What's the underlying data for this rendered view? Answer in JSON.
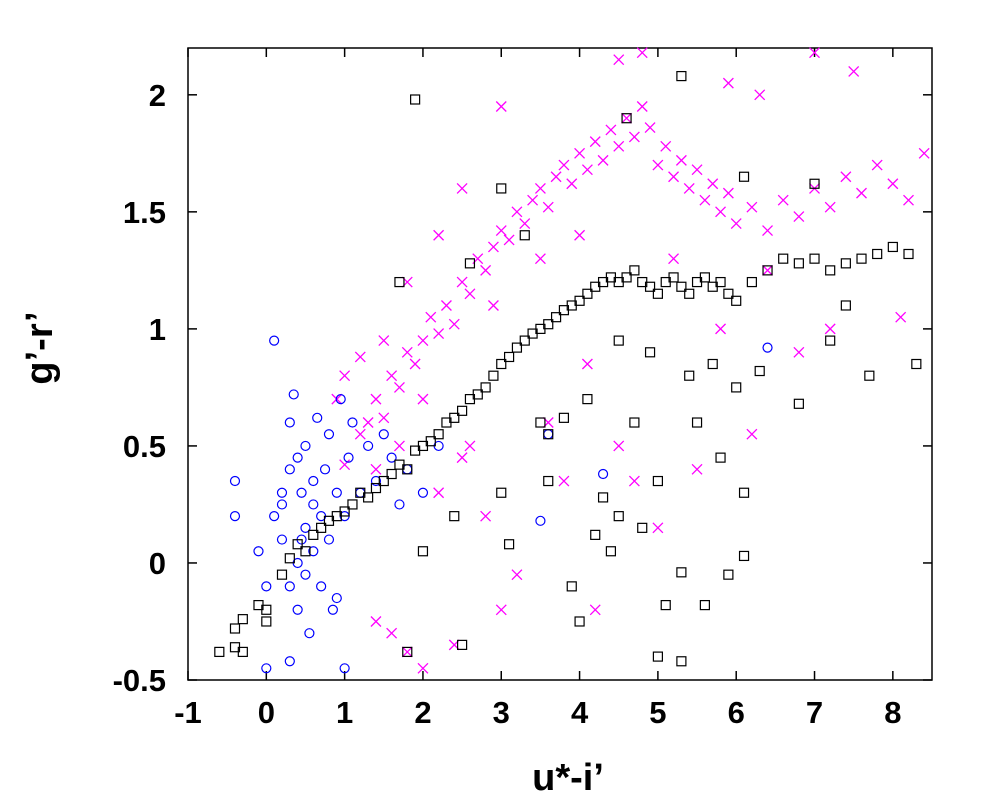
{
  "chart_data": {
    "type": "scatter",
    "xlabel": "u*-i’",
    "ylabel": "g’-r’",
    "xlim": [
      -1,
      8.5
    ],
    "ylim": [
      -0.5,
      2.2
    ],
    "xticks": [
      "-1",
      "0",
      "1",
      "2",
      "3",
      "4",
      "5",
      "6",
      "7",
      "8"
    ],
    "yticks": [
      "-0.5",
      "0",
      "0.5",
      "1",
      "1.5",
      "2"
    ],
    "grid": false,
    "legend": "none",
    "series": [
      {
        "marker": "cross",
        "color": "#ff00ff",
        "points": [
          [
            1.0,
            0.42
          ],
          [
            1.2,
            0.55
          ],
          [
            1.3,
            0.6
          ],
          [
            1.4,
            0.7
          ],
          [
            1.5,
            0.62
          ],
          [
            1.6,
            0.8
          ],
          [
            1.7,
            0.75
          ],
          [
            1.8,
            0.9
          ],
          [
            1.9,
            0.85
          ],
          [
            2.0,
            0.95
          ],
          [
            2.1,
            1.05
          ],
          [
            2.2,
            0.98
          ],
          [
            2.3,
            1.1
          ],
          [
            2.4,
            1.02
          ],
          [
            2.5,
            1.2
          ],
          [
            2.6,
            1.15
          ],
          [
            2.7,
            1.3
          ],
          [
            2.8,
            1.25
          ],
          [
            2.9,
            1.35
          ],
          [
            3.0,
            1.42
          ],
          [
            3.1,
            1.38
          ],
          [
            3.2,
            1.5
          ],
          [
            3.3,
            1.45
          ],
          [
            3.4,
            1.55
          ],
          [
            3.5,
            1.6
          ],
          [
            3.6,
            1.52
          ],
          [
            3.7,
            1.65
          ],
          [
            3.8,
            1.7
          ],
          [
            3.9,
            1.62
          ],
          [
            4.0,
            1.75
          ],
          [
            4.1,
            1.68
          ],
          [
            4.2,
            1.8
          ],
          [
            4.3,
            1.72
          ],
          [
            4.4,
            1.85
          ],
          [
            4.5,
            1.78
          ],
          [
            4.6,
            1.9
          ],
          [
            4.7,
            1.82
          ],
          [
            4.8,
            1.95
          ],
          [
            4.9,
            1.86
          ],
          [
            5.0,
            1.7
          ],
          [
            5.1,
            1.78
          ],
          [
            5.2,
            1.65
          ],
          [
            5.3,
            1.72
          ],
          [
            5.4,
            1.6
          ],
          [
            5.5,
            1.68
          ],
          [
            5.6,
            1.55
          ],
          [
            5.7,
            1.62
          ],
          [
            5.8,
            1.5
          ],
          [
            5.9,
            1.58
          ],
          [
            6.0,
            1.45
          ],
          [
            6.2,
            1.52
          ],
          [
            6.4,
            1.42
          ],
          [
            6.6,
            1.55
          ],
          [
            6.8,
            1.48
          ],
          [
            7.0,
            1.6
          ],
          [
            7.2,
            1.52
          ],
          [
            7.4,
            1.65
          ],
          [
            7.6,
            1.58
          ],
          [
            7.8,
            1.7
          ],
          [
            8.0,
            1.62
          ],
          [
            8.2,
            1.55
          ],
          [
            8.4,
            1.75
          ],
          [
            7.5,
            2.1
          ],
          [
            7.0,
            2.18
          ],
          [
            5.9,
            2.05
          ],
          [
            6.3,
            2.0
          ],
          [
            4.5,
            2.15
          ],
          [
            4.8,
            2.18
          ],
          [
            3.0,
            1.95
          ],
          [
            2.5,
            1.6
          ],
          [
            2.2,
            1.4
          ],
          [
            1.8,
            1.2
          ],
          [
            1.5,
            0.95
          ],
          [
            1.2,
            0.88
          ],
          [
            1.0,
            0.8
          ],
          [
            0.9,
            0.7
          ],
          [
            2.6,
            0.5
          ],
          [
            2.8,
            0.2
          ],
          [
            3.2,
            -0.05
          ],
          [
            3.0,
            -0.2
          ],
          [
            2.4,
            -0.35
          ],
          [
            2.0,
            -0.45
          ],
          [
            1.8,
            -0.38
          ],
          [
            1.6,
            -0.3
          ],
          [
            1.4,
            -0.25
          ],
          [
            2.2,
            0.3
          ],
          [
            2.5,
            0.45
          ],
          [
            3.6,
            0.6
          ],
          [
            4.1,
            0.85
          ],
          [
            4.5,
            0.5
          ],
          [
            3.8,
            0.35
          ],
          [
            4.2,
            -0.2
          ],
          [
            5.0,
            0.15
          ],
          [
            4.7,
            0.35
          ],
          [
            5.5,
            0.4
          ],
          [
            6.2,
            0.55
          ],
          [
            6.8,
            0.9
          ],
          [
            7.2,
            1.0
          ],
          [
            8.1,
            1.05
          ],
          [
            5.8,
            1.0
          ],
          [
            6.4,
            1.25
          ],
          [
            5.2,
            1.3
          ],
          [
            4.0,
            1.4
          ],
          [
            3.5,
            1.3
          ],
          [
            2.9,
            1.1
          ],
          [
            2.0,
            0.7
          ],
          [
            1.7,
            0.5
          ],
          [
            1.4,
            0.4
          ]
        ]
      },
      {
        "marker": "circle",
        "color": "#0000ff",
        "points": [
          [
            -0.4,
            0.35
          ],
          [
            -0.4,
            0.2
          ],
          [
            -0.1,
            0.05
          ],
          [
            0.0,
            -0.1
          ],
          [
            0.1,
            0.2
          ],
          [
            0.1,
            0.95
          ],
          [
            0.2,
            0.3
          ],
          [
            0.2,
            0.1
          ],
          [
            0.3,
            0.6
          ],
          [
            0.3,
            0.4
          ],
          [
            0.3,
            -0.1
          ],
          [
            0.35,
            0.72
          ],
          [
            0.4,
            0.45
          ],
          [
            0.4,
            0.0
          ],
          [
            0.4,
            -0.2
          ],
          [
            0.45,
            0.3
          ],
          [
            0.5,
            0.5
          ],
          [
            0.5,
            0.15
          ],
          [
            0.5,
            -0.05
          ],
          [
            0.55,
            -0.3
          ],
          [
            0.6,
            0.35
          ],
          [
            0.6,
            0.05
          ],
          [
            0.65,
            0.62
          ],
          [
            0.7,
            0.2
          ],
          [
            0.7,
            -0.1
          ],
          [
            0.75,
            0.4
          ],
          [
            0.8,
            0.55
          ],
          [
            0.8,
            0.1
          ],
          [
            0.85,
            -0.2
          ],
          [
            0.9,
            0.3
          ],
          [
            0.95,
            0.7
          ],
          [
            1.0,
            0.2
          ],
          [
            1.0,
            -0.45
          ],
          [
            1.05,
            0.45
          ],
          [
            1.1,
            0.6
          ],
          [
            1.2,
            0.3
          ],
          [
            1.3,
            0.5
          ],
          [
            1.4,
            0.35
          ],
          [
            1.5,
            0.55
          ],
          [
            1.6,
            0.45
          ],
          [
            1.7,
            0.25
          ],
          [
            1.8,
            0.4
          ],
          [
            2.0,
            0.3
          ],
          [
            2.2,
            0.5
          ],
          [
            3.6,
            0.55
          ],
          [
            3.5,
            0.18
          ],
          [
            4.3,
            0.38
          ],
          [
            6.4,
            0.92
          ],
          [
            0.3,
            -0.42
          ],
          [
            0.0,
            -0.45
          ],
          [
            0.2,
            0.25
          ],
          [
            0.6,
            0.25
          ],
          [
            0.9,
            -0.15
          ],
          [
            0.45,
            0.1
          ]
        ]
      },
      {
        "marker": "square",
        "color": "#000000",
        "points": [
          [
            -0.6,
            -0.38
          ],
          [
            -0.4,
            -0.36
          ],
          [
            -0.3,
            -0.38
          ],
          [
            -0.4,
            -0.28
          ],
          [
            -0.3,
            -0.24
          ],
          [
            -0.1,
            -0.18
          ],
          [
            0.0,
            -0.25
          ],
          [
            0.0,
            -0.2
          ],
          [
            0.2,
            -0.05
          ],
          [
            0.3,
            0.02
          ],
          [
            0.4,
            0.08
          ],
          [
            0.5,
            0.05
          ],
          [
            0.6,
            0.12
          ],
          [
            0.7,
            0.15
          ],
          [
            0.8,
            0.18
          ],
          [
            0.9,
            0.2
          ],
          [
            1.0,
            0.22
          ],
          [
            1.1,
            0.25
          ],
          [
            1.2,
            0.3
          ],
          [
            1.3,
            0.28
          ],
          [
            1.4,
            0.32
          ],
          [
            1.5,
            0.35
          ],
          [
            1.6,
            0.38
          ],
          [
            1.7,
            0.42
          ],
          [
            1.8,
            0.4
          ],
          [
            1.9,
            0.48
          ],
          [
            2.0,
            0.5
          ],
          [
            2.1,
            0.52
          ],
          [
            2.2,
            0.55
          ],
          [
            2.3,
            0.6
          ],
          [
            2.4,
            0.62
          ],
          [
            2.5,
            0.65
          ],
          [
            2.6,
            0.7
          ],
          [
            2.7,
            0.72
          ],
          [
            2.8,
            0.75
          ],
          [
            2.9,
            0.8
          ],
          [
            3.0,
            0.85
          ],
          [
            3.1,
            0.88
          ],
          [
            3.2,
            0.92
          ],
          [
            3.3,
            0.95
          ],
          [
            3.4,
            0.98
          ],
          [
            3.5,
            1.0
          ],
          [
            3.6,
            1.02
          ],
          [
            3.7,
            1.05
          ],
          [
            3.8,
            1.08
          ],
          [
            3.9,
            1.1
          ],
          [
            4.0,
            1.12
          ],
          [
            4.1,
            1.15
          ],
          [
            4.2,
            1.18
          ],
          [
            4.3,
            1.2
          ],
          [
            4.4,
            1.22
          ],
          [
            4.5,
            1.2
          ],
          [
            4.6,
            1.22
          ],
          [
            4.7,
            1.25
          ],
          [
            4.8,
            1.2
          ],
          [
            4.9,
            1.18
          ],
          [
            5.0,
            1.15
          ],
          [
            5.1,
            1.2
          ],
          [
            5.2,
            1.22
          ],
          [
            5.3,
            1.18
          ],
          [
            5.4,
            1.15
          ],
          [
            5.5,
            1.2
          ],
          [
            5.6,
            1.22
          ],
          [
            5.7,
            1.18
          ],
          [
            5.8,
            1.2
          ],
          [
            5.9,
            1.15
          ],
          [
            6.0,
            1.12
          ],
          [
            6.2,
            1.2
          ],
          [
            6.4,
            1.25
          ],
          [
            6.6,
            1.3
          ],
          [
            6.8,
            1.28
          ],
          [
            7.0,
            1.3
          ],
          [
            7.2,
            1.25
          ],
          [
            7.4,
            1.28
          ],
          [
            7.6,
            1.3
          ],
          [
            7.8,
            1.32
          ],
          [
            8.0,
            1.35
          ],
          [
            8.2,
            1.32
          ],
          [
            8.3,
            0.85
          ],
          [
            7.7,
            0.8
          ],
          [
            7.2,
            0.95
          ],
          [
            7.4,
            1.1
          ],
          [
            6.8,
            0.68
          ],
          [
            6.1,
            0.3
          ],
          [
            6.1,
            0.03
          ],
          [
            5.8,
            0.45
          ],
          [
            5.9,
            -0.05
          ],
          [
            5.6,
            -0.18
          ],
          [
            5.3,
            -0.04
          ],
          [
            5.3,
            -0.42
          ],
          [
            5.1,
            -0.18
          ],
          [
            5.0,
            0.35
          ],
          [
            5.0,
            -0.4
          ],
          [
            4.8,
            0.15
          ],
          [
            4.7,
            0.6
          ],
          [
            4.5,
            0.2
          ],
          [
            4.4,
            0.05
          ],
          [
            4.3,
            0.28
          ],
          [
            4.2,
            0.12
          ],
          [
            4.0,
            -0.25
          ],
          [
            3.9,
            -0.1
          ],
          [
            3.6,
            0.35
          ],
          [
            3.5,
            0.6
          ],
          [
            3.1,
            0.08
          ],
          [
            3.0,
            0.3
          ],
          [
            2.4,
            0.2
          ],
          [
            2.5,
            -0.35
          ],
          [
            2.0,
            0.05
          ],
          [
            1.8,
            -0.38
          ],
          [
            1.9,
            1.98
          ],
          [
            1.7,
            1.2
          ],
          [
            3.0,
            1.6
          ],
          [
            5.3,
            2.08
          ],
          [
            4.6,
            1.9
          ],
          [
            6.1,
            1.65
          ],
          [
            7.0,
            1.62
          ],
          [
            3.3,
            1.4
          ],
          [
            2.6,
            1.28
          ],
          [
            4.5,
            0.95
          ],
          [
            4.9,
            0.9
          ],
          [
            5.4,
            0.8
          ],
          [
            5.7,
            0.85
          ],
          [
            6.3,
            0.82
          ],
          [
            3.8,
            0.62
          ],
          [
            3.6,
            0.55
          ],
          [
            4.1,
            0.7
          ],
          [
            5.5,
            0.6
          ],
          [
            6.0,
            0.75
          ]
        ]
      }
    ]
  }
}
